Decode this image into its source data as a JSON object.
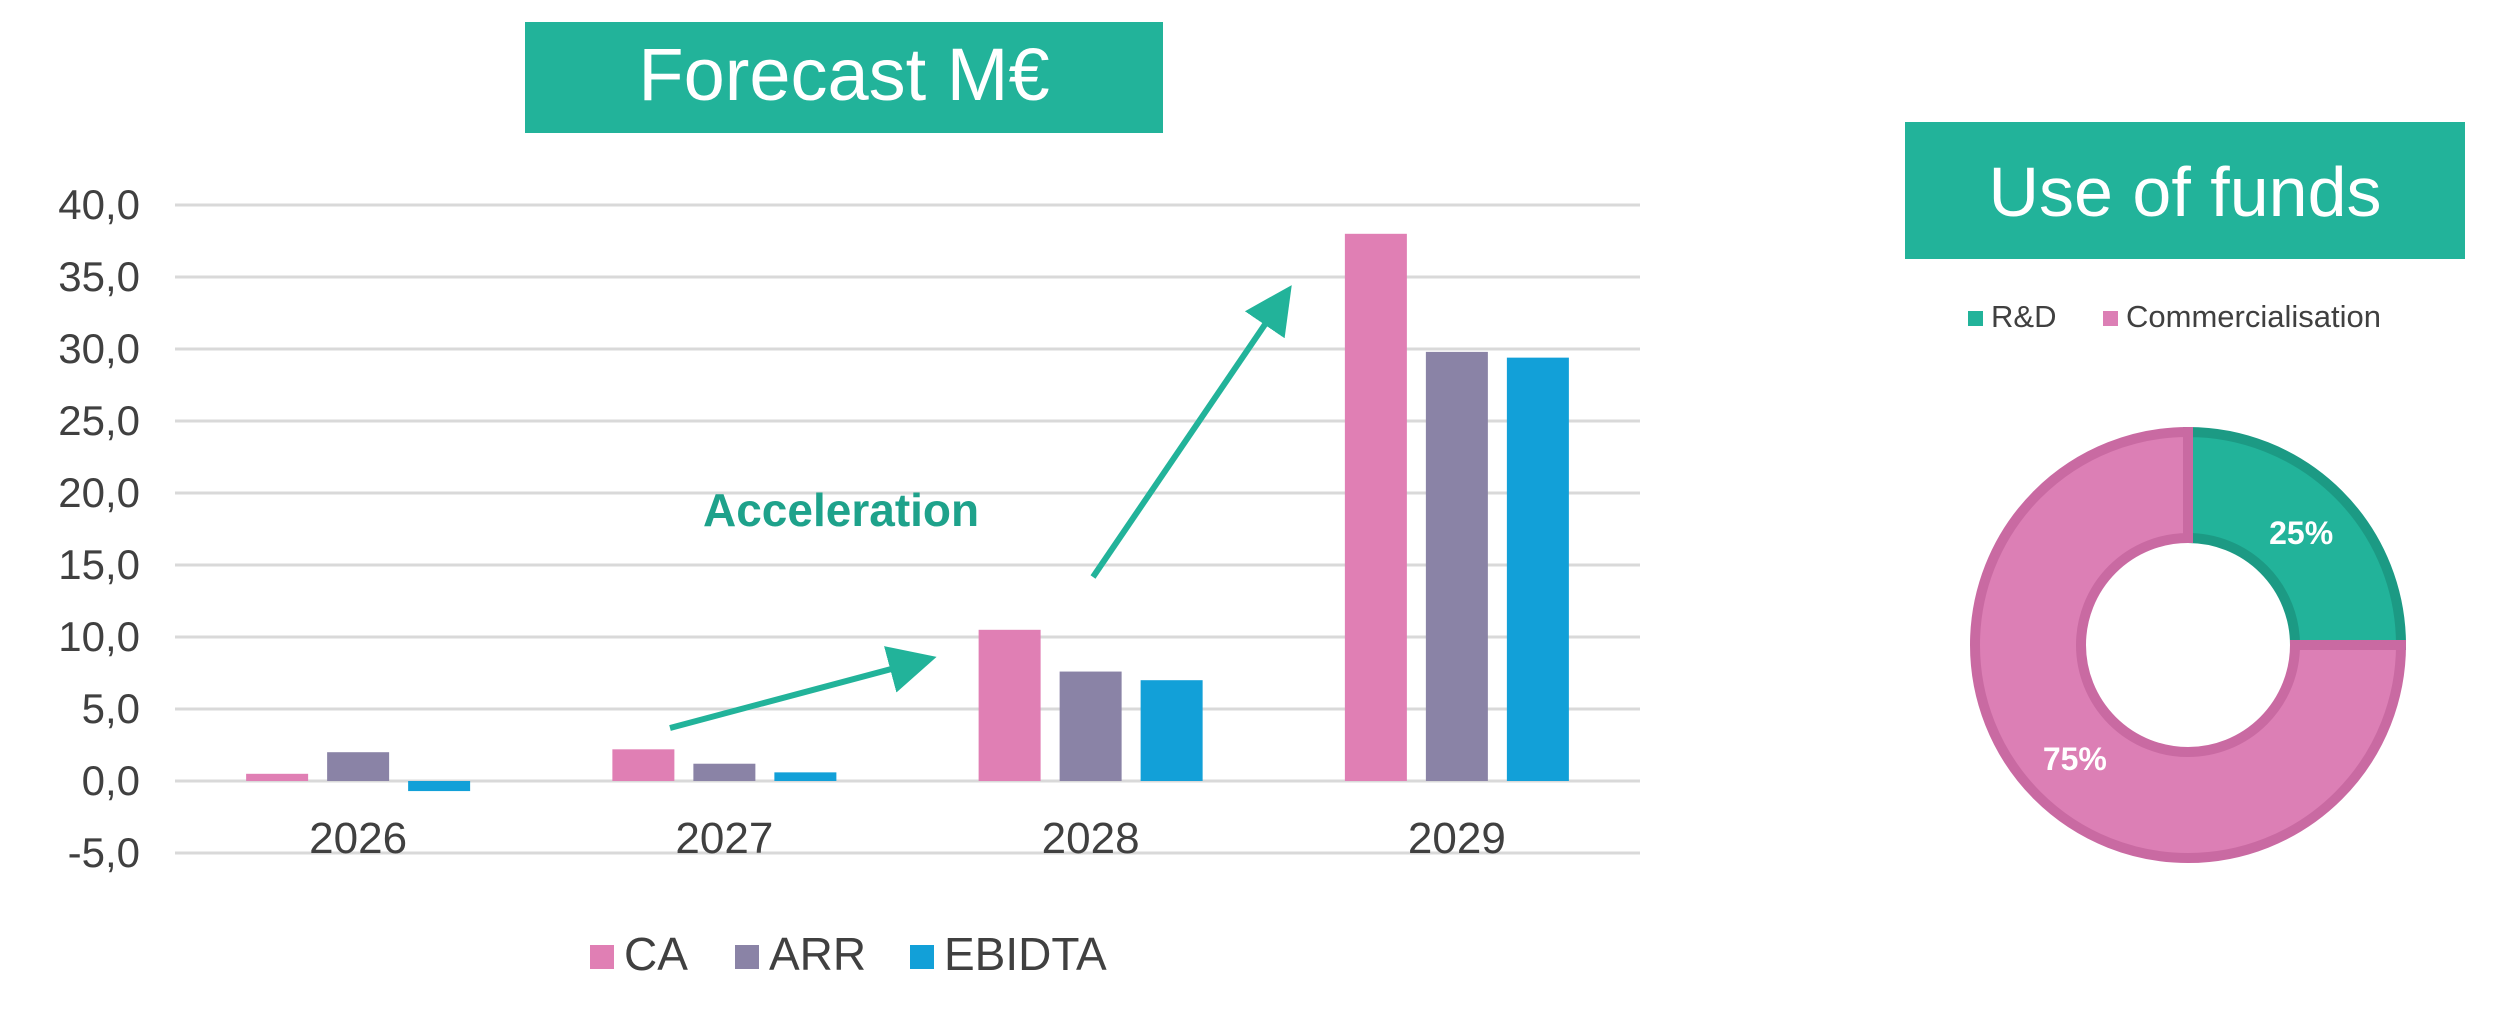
{
  "colors": {
    "teal": "#22b39a",
    "ca": "#e07fb4",
    "arr": "#8a83a6",
    "ebidta": "#12a0d8",
    "rd": "#22b39a",
    "commercialisation": "#dc7fb5",
    "axis_text": "#404040",
    "grid": "#d9d9d9"
  },
  "forecast_title": "Forecast M€",
  "funds_title": "Use of funds",
  "annotation": "Acceleration",
  "chart_data": [
    {
      "type": "bar",
      "title": "Forecast M€",
      "categories": [
        "2026",
        "2027",
        "2028",
        "2029"
      ],
      "series": [
        {
          "name": "CA",
          "values": [
            0.5,
            2.2,
            10.5,
            38.0
          ]
        },
        {
          "name": "ARR",
          "values": [
            2.0,
            1.2,
            7.6,
            29.8
          ]
        },
        {
          "name": "EBIDTA",
          "values": [
            -0.7,
            0.6,
            7.0,
            29.4
          ]
        }
      ],
      "ylim": [
        -5,
        40
      ],
      "yticks": [
        "-5,0",
        "0,0",
        "5,0",
        "10,0",
        "15,0",
        "20,0",
        "25,0",
        "30,0",
        "35,0",
        "40,0"
      ],
      "grid": true,
      "legend": "bottom",
      "annotations": [
        "Acceleration"
      ]
    },
    {
      "type": "pie",
      "title": "Use of funds",
      "labels": [
        "R&D",
        "Commercialisation"
      ],
      "values": [
        25,
        75
      ],
      "value_labels": [
        "25%",
        "75%"
      ],
      "legend": "top"
    }
  ]
}
